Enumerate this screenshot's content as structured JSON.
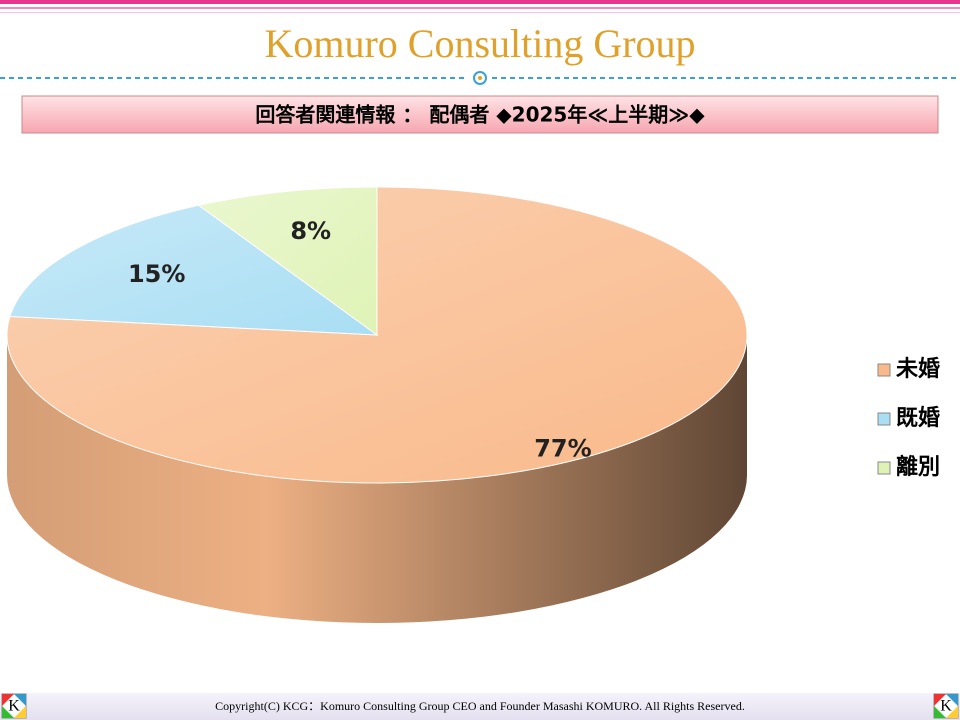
{
  "header": {
    "title": "Komuro Consulting Group"
  },
  "chart_data": {
    "type": "pie",
    "title": "回答者関連情報 ： 配偶者 ◆2025年≪上半期≫◆",
    "categories": [
      "未婚",
      "既婚",
      "離別"
    ],
    "values": [
      77,
      15,
      8
    ],
    "value_labels": [
      "77%",
      "15%",
      "8%"
    ],
    "colors": [
      "#f9b98a",
      "#a9def4",
      "#dff3b6"
    ],
    "legend": "right"
  },
  "footer": {
    "copyright": "Copyright(C) KCG：Komuro Consulting Group CEO and Founder Masashi KOMURO. All Rights Reserved."
  }
}
